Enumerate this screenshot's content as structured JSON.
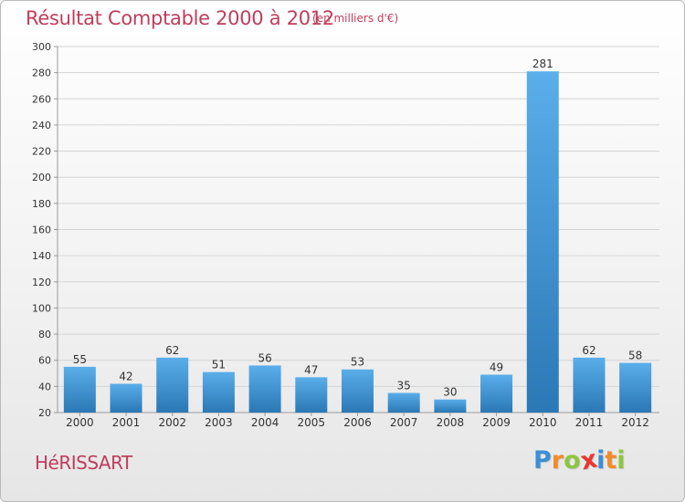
{
  "header": {
    "title": "Résultat Comptable 2000 à 2012",
    "subtitle": "(en milliers d'€)"
  },
  "footer": {
    "place": "HéRISSART",
    "logo": {
      "letters": [
        "P",
        "r",
        "o",
        "x",
        "i",
        "t",
        "i"
      ],
      "colors": [
        "#3b8fd6",
        "#f28c28",
        "#8cc63f",
        "#e8382f",
        "#3b8fd6",
        "#f28c28",
        "#8cc63f"
      ]
    }
  },
  "colors": {
    "bar_top": "#5aaeea",
    "bar_bottom": "#2a78b5",
    "grid": "#d4d4d4",
    "axis": "#9a9a9a",
    "text": "#333333",
    "accent": "#c03d5b"
  },
  "chart_data": {
    "type": "bar",
    "categories": [
      "2000",
      "2001",
      "2002",
      "2003",
      "2004",
      "2005",
      "2006",
      "2007",
      "2008",
      "2009",
      "2010",
      "2011",
      "2012"
    ],
    "values": [
      55,
      42,
      62,
      51,
      56,
      47,
      53,
      35,
      30,
      49,
      281,
      62,
      58
    ],
    "ylim": [
      20,
      300
    ],
    "yticks": [
      20,
      40,
      60,
      80,
      100,
      120,
      140,
      160,
      180,
      200,
      220,
      240,
      260,
      280,
      300
    ],
    "grid": true,
    "data_labels": true
  }
}
